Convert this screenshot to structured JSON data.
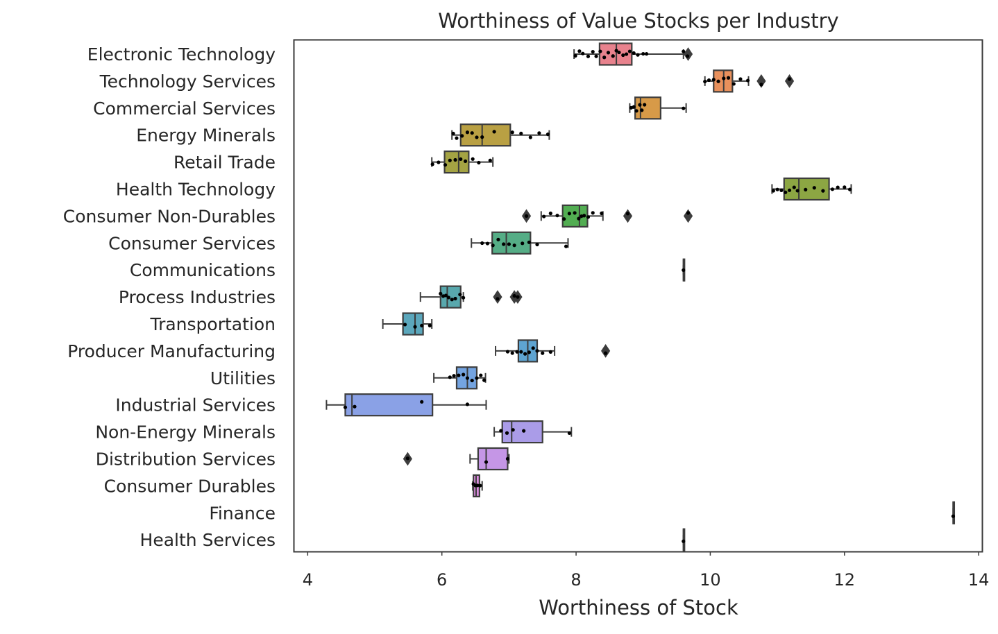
{
  "chart_data": {
    "type": "boxplot",
    "orientation": "horizontal",
    "title": "Worthiness of Value Stocks per Industry",
    "xlabel": "Worthiness of Stock",
    "ylabel": "",
    "xlim": [
      3.8,
      14.05
    ],
    "xticks": [
      4,
      6,
      8,
      10,
      12,
      14
    ],
    "xtick_labels": [
      "4",
      "6",
      "8",
      "10",
      "12",
      "14"
    ],
    "grid": false,
    "legend": "none",
    "categories": [
      "Electronic Technology",
      "Technology Services",
      "Commercial Services",
      "Energy Minerals",
      "Retail Trade",
      "Health Technology",
      "Consumer Non-Durables",
      "Consumer Services",
      "Communications",
      "Process Industries",
      "Transportation",
      "Producer Manufacturing",
      "Utilities",
      "Industrial Services",
      "Non-Energy Minerals",
      "Distribution Services",
      "Consumer Durables",
      "Finance",
      "Health Services"
    ],
    "colors": [
      "#e8828d",
      "#e8905c",
      "#d79a48",
      "#b9a043",
      "#a4a343",
      "#8ca643",
      "#52ad52",
      "#55ad86",
      "#56aa9e",
      "#58a8ad",
      "#5ba7bc",
      "#5ea4d1",
      "#74a4e1",
      "#8aa1e6",
      "#aa9ce8",
      "#c596e6",
      "#dc8de0",
      "#e58bc8",
      "#e992b4"
    ],
    "series": [
      {
        "name": "Electronic Technology",
        "min": 7.97,
        "q1": 8.35,
        "median": 8.6,
        "q3": 8.83,
        "max": 9.6,
        "outliers": [
          9.67
        ],
        "points": [
          7.99,
          8.05,
          8.1,
          8.18,
          8.25,
          8.3,
          8.36,
          8.42,
          8.48,
          8.55,
          8.6,
          8.64,
          8.7,
          8.75,
          8.8,
          8.86,
          8.92,
          9.0,
          9.05,
          9.6,
          9.66
        ]
      },
      {
        "name": "Technology Services",
        "min": 9.92,
        "q1": 10.05,
        "median": 10.2,
        "q3": 10.33,
        "max": 10.57,
        "outliers": [
          10.76,
          11.18
        ],
        "points": [
          9.92,
          9.98,
          10.05,
          10.12,
          10.2,
          10.27,
          10.35,
          10.45,
          10.56,
          10.76,
          11.18
        ]
      },
      {
        "name": "Commercial Services",
        "min": 8.8,
        "q1": 8.88,
        "median": 8.96,
        "q3": 9.26,
        "max": 9.64,
        "outliers": [],
        "points": [
          8.82,
          8.86,
          8.9,
          8.95,
          8.98,
          9.02,
          9.6
        ]
      },
      {
        "name": "Energy Minerals",
        "min": 6.15,
        "q1": 6.28,
        "median": 6.6,
        "q3": 7.02,
        "max": 7.6,
        "outliers": [],
        "points": [
          6.17,
          6.22,
          6.3,
          6.38,
          6.45,
          6.52,
          6.6,
          6.78,
          7.05,
          7.18,
          7.32,
          7.45,
          7.58
        ]
      },
      {
        "name": "Retail Trade",
        "min": 5.85,
        "q1": 6.04,
        "median": 6.25,
        "q3": 6.4,
        "max": 6.76,
        "outliers": [],
        "points": [
          5.86,
          5.95,
          6.05,
          6.12,
          6.2,
          6.28,
          6.35,
          6.46,
          6.55,
          6.72
        ]
      },
      {
        "name": "Health Technology",
        "min": 10.92,
        "q1": 11.1,
        "median": 11.32,
        "q3": 11.77,
        "max": 12.1,
        "outliers": [],
        "points": [
          10.94,
          11.0,
          11.06,
          11.12,
          11.18,
          11.25,
          11.3,
          11.42,
          11.55,
          11.68,
          11.82,
          11.9,
          12.0,
          12.08
        ]
      },
      {
        "name": "Consumer Non-Durables",
        "min": 7.48,
        "q1": 7.8,
        "median": 8.05,
        "q3": 8.17,
        "max": 8.4,
        "outliers": [
          7.26,
          8.77,
          9.67
        ],
        "points": [
          7.26,
          7.52,
          7.62,
          7.72,
          7.82,
          7.9,
          7.98,
          8.04,
          8.08,
          8.12,
          8.18,
          8.25,
          8.38,
          8.77,
          9.67
        ]
      },
      {
        "name": "Consumer Services",
        "min": 6.44,
        "q1": 6.75,
        "median": 6.96,
        "q3": 7.32,
        "max": 7.88,
        "outliers": [],
        "points": [
          6.6,
          6.68,
          6.76,
          6.84,
          6.92,
          7.0,
          7.08,
          7.2,
          7.3,
          7.42,
          7.85
        ]
      },
      {
        "name": "Communications",
        "min": 9.6,
        "q1": 9.6,
        "median": 9.6,
        "q3": 9.6,
        "max": 9.6,
        "outliers": [],
        "points": [
          9.6
        ]
      },
      {
        "name": "Process Industries",
        "min": 5.68,
        "q1": 5.98,
        "median": 6.08,
        "q3": 6.28,
        "max": 6.32,
        "outliers": [
          6.83,
          7.08,
          7.13
        ],
        "points": [
          5.98,
          6.02,
          6.06,
          6.1,
          6.15,
          6.2,
          6.27,
          6.32,
          6.83,
          7.08,
          7.13
        ]
      },
      {
        "name": "Transportation",
        "min": 5.12,
        "q1": 5.42,
        "median": 5.6,
        "q3": 5.72,
        "max": 5.85,
        "outliers": [],
        "points": [
          5.45,
          5.6,
          5.7,
          5.82
        ]
      },
      {
        "name": "Producer Manufacturing",
        "min": 6.8,
        "q1": 7.14,
        "median": 7.28,
        "q3": 7.42,
        "max": 7.68,
        "outliers": [
          8.44
        ],
        "points": [
          6.98,
          7.05,
          7.12,
          7.18,
          7.24,
          7.3,
          7.36,
          7.42,
          7.5,
          7.62,
          8.44
        ]
      },
      {
        "name": "Utilities",
        "min": 5.88,
        "q1": 6.22,
        "median": 6.38,
        "q3": 6.52,
        "max": 6.65,
        "outliers": [],
        "points": [
          6.12,
          6.18,
          6.25,
          6.32,
          6.38,
          6.45,
          6.52,
          6.58,
          6.63
        ]
      },
      {
        "name": "Industrial Services",
        "min": 4.28,
        "q1": 4.56,
        "median": 4.66,
        "q3": 5.86,
        "max": 6.66,
        "outliers": [],
        "points": [
          4.56,
          4.7,
          5.7,
          6.38
        ]
      },
      {
        "name": "Non-Energy Minerals",
        "min": 6.78,
        "q1": 6.9,
        "median": 7.04,
        "q3": 7.5,
        "max": 7.93,
        "outliers": [],
        "points": [
          6.88,
          6.97,
          7.06,
          7.22,
          7.9
        ]
      },
      {
        "name": "Distribution Services",
        "min": 6.42,
        "q1": 6.54,
        "median": 6.66,
        "q3": 6.98,
        "max": 7.0,
        "outliers": [
          5.49
        ],
        "points": [
          5.49,
          6.66,
          6.98
        ]
      },
      {
        "name": "Consumer Durables",
        "min": 6.46,
        "q1": 6.47,
        "median": 6.51,
        "q3": 6.56,
        "max": 6.6,
        "outliers": [],
        "points": [
          6.47,
          6.5,
          6.53,
          6.57
        ]
      },
      {
        "name": "Finance",
        "min": 13.62,
        "q1": 13.62,
        "median": 13.62,
        "q3": 13.62,
        "max": 13.62,
        "outliers": [],
        "points": [
          13.62
        ]
      },
      {
        "name": "Health Services",
        "min": 9.6,
        "q1": 9.6,
        "median": 9.6,
        "q3": 9.6,
        "max": 9.6,
        "outliers": [],
        "points": [
          9.6
        ]
      }
    ]
  }
}
